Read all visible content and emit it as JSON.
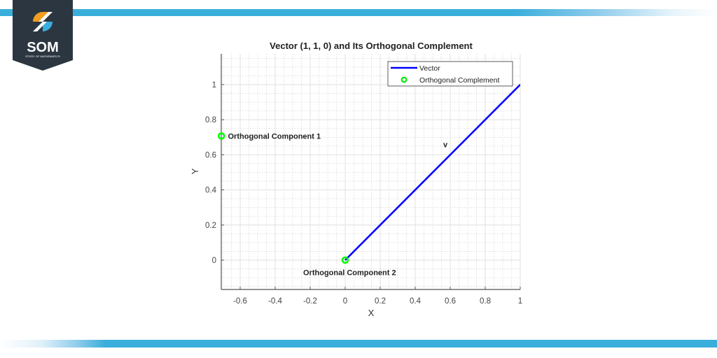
{
  "brand": {
    "logo_text": "SOM",
    "logo_subtext": "STORY OF MATHEMATICS",
    "panel_color": "#2b3640",
    "accent_orange": "#f39c1f",
    "accent_blue": "#3aaedb"
  },
  "chart_data": {
    "type": "line",
    "title": "Vector (1, 1, 0) and Its Orthogonal Complement",
    "xlabel": "X",
    "ylabel": "Y",
    "xlim": [
      -0.708,
      1.0
    ],
    "ylim": [
      -0.168,
      1.17
    ],
    "xticks": [
      -0.6,
      -0.4,
      -0.2,
      0,
      0.2,
      0.4,
      0.6,
      0.8,
      1
    ],
    "xtick_labels": [
      "-0.6",
      "-0.4",
      "-0.2",
      "0",
      "0.2",
      "0.4",
      "0.6",
      "0.8",
      "1"
    ],
    "yticks": [
      0,
      0.2,
      0.4,
      0.6,
      0.8,
      1
    ],
    "ytick_labels": [
      "0",
      "0.2",
      "0.4",
      "0.6",
      "0.8",
      "1"
    ],
    "grid": true,
    "minor_grid": true,
    "legend_position": "northeast",
    "series": [
      {
        "name": "Vector",
        "kind": "line",
        "color": "#0000ff",
        "x": [
          0,
          1
        ],
        "y": [
          0,
          1
        ]
      },
      {
        "name": "Orthogonal Complement",
        "kind": "scatter",
        "marker": "o",
        "color": "#00ff00",
        "x": [
          -0.7071,
          0
        ],
        "y": [
          0.7071,
          0
        ]
      }
    ],
    "annotations": [
      {
        "text": "v",
        "x": 0.56,
        "y": 0.66
      },
      {
        "text": "Orthogonal Component 1",
        "x": -0.67,
        "y": 0.7071
      },
      {
        "text": "Orthogonal Component 2",
        "x": -0.24,
        "y": -0.07
      }
    ],
    "legend": [
      "Vector",
      "Orthogonal Complement"
    ]
  }
}
